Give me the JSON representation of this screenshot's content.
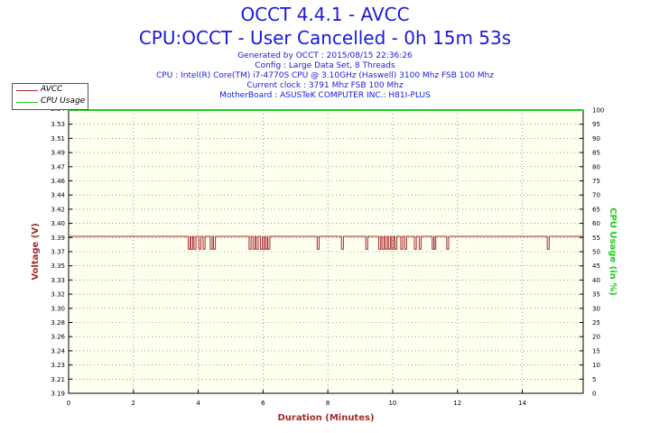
{
  "header": {
    "title": "OCCT 4.4.1 - AVCC",
    "subtitle": "CPU:OCCT - User Cancelled - 0h 15m 53s",
    "info": [
      "Generated by OCCT : 2015/08/15 22:36:26",
      "Config : Large Data Set, 8 Threads",
      "CPU : Intel(R) Core(TM) i7-4770S CPU @ 3.10GHz (Haswell) 3100 Mhz FSB 100 Mhz",
      "Current clock : 3791 Mhz FSB 100 Mhz",
      "MotherBoard : ASUSTeK COMPUTER INC.: H81I-PLUS"
    ]
  },
  "legend": {
    "items": [
      "AVCC",
      "CPU Usage"
    ]
  },
  "colors": {
    "avcc": "#a52a2a",
    "cpu_usage": "#22cc22",
    "axis_left": "#a52a2a",
    "axis_right": "#22cc22",
    "grid": "#555555",
    "plot_bg": "#fffff0"
  },
  "chart_data": {
    "type": "line",
    "xlabel": "Duration (Minutes)",
    "ylabel": "Voltage (V)",
    "y2label": "CPU Usage (in %)",
    "xlim": [
      0,
      15.88
    ],
    "ylim": [
      3.19,
      3.54
    ],
    "y2lim": [
      0,
      100
    ],
    "x_ticks": [
      "0",
      "2",
      "4",
      "6",
      "8",
      "10",
      "12",
      "14"
    ],
    "y_ticks": [
      "3.19",
      "3.21",
      "3.23",
      "3.24",
      "3.26",
      "3.28",
      "3.30",
      "3.32",
      "3.33",
      "3.35",
      "3.37",
      "3.39",
      "3.40",
      "3.42",
      "3.44",
      "3.46",
      "3.47",
      "3.49",
      "3.51",
      "3.53"
    ],
    "y_ticks_top_partial": "3.54",
    "y2_ticks": [
      "0",
      "5",
      "10",
      "15",
      "20",
      "25",
      "30",
      "35",
      "40",
      "45",
      "50",
      "55",
      "60",
      "65",
      "70",
      "75",
      "80",
      "85",
      "90",
      "95",
      "100"
    ],
    "grid": true,
    "legend_position": "top-left",
    "series": [
      {
        "name": "AVCC",
        "baseline": 3.384,
        "dip_value": 3.368,
        "dips_at_minutes": [
          3.72,
          3.8,
          3.9,
          4.05,
          4.18,
          4.4,
          4.5,
          5.6,
          5.72,
          5.82,
          5.95,
          6.02,
          6.1,
          6.18,
          7.7,
          8.45,
          9.2,
          9.6,
          9.7,
          9.8,
          9.9,
          10.0,
          10.1,
          10.28,
          10.4,
          10.7,
          10.85,
          11.25,
          11.3,
          11.7,
          14.8
        ],
        "color": "#a52a2a"
      },
      {
        "name": "CPU Usage",
        "values_percent": [
          100,
          100
        ],
        "x": [
          0,
          15.88
        ],
        "color": "#22cc22"
      }
    ]
  }
}
